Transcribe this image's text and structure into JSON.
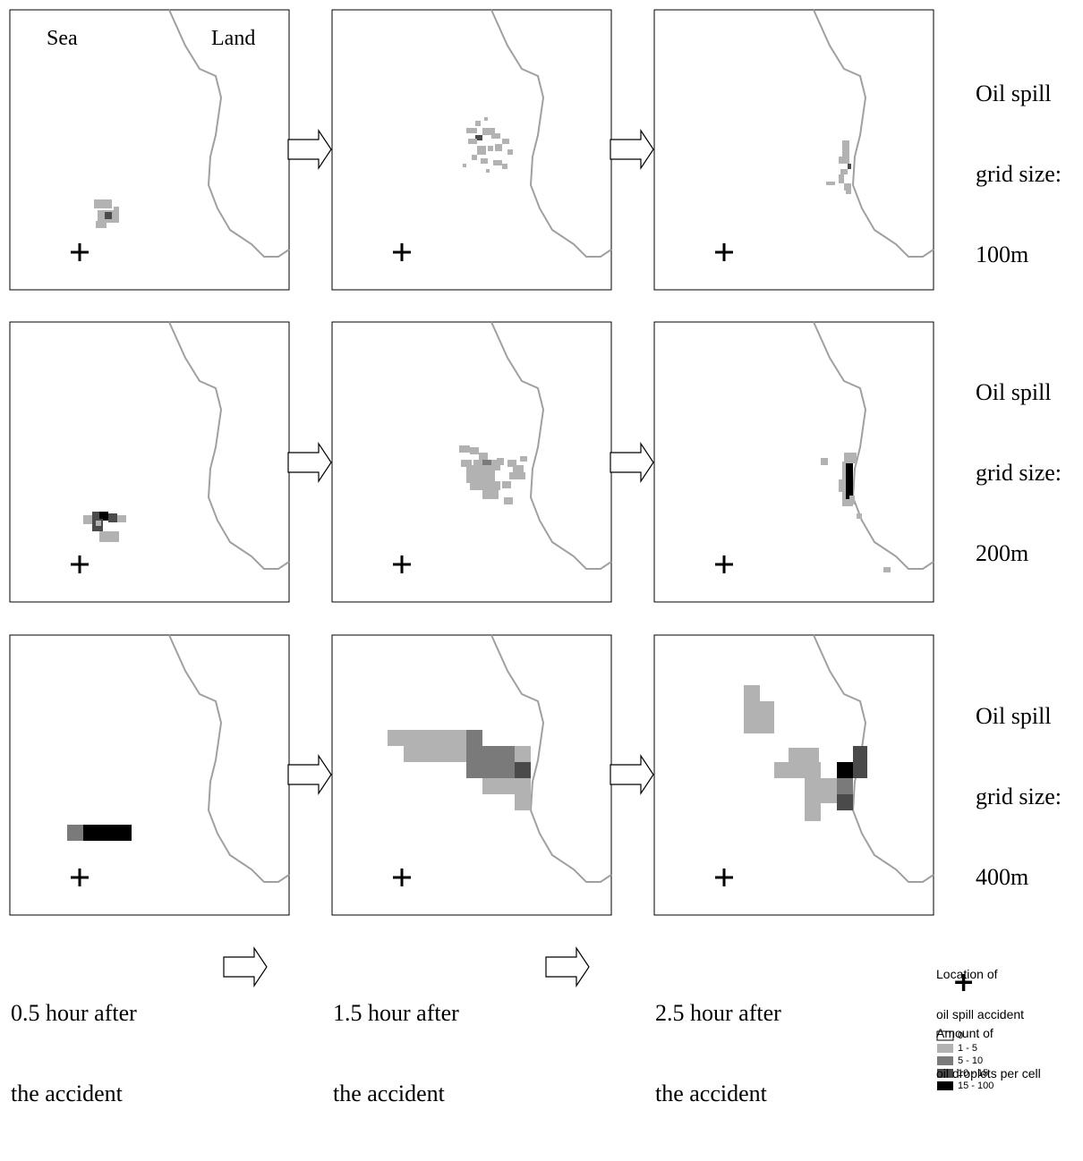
{
  "map_labels": {
    "sea": "Sea",
    "land": "Land"
  },
  "rows": [
    {
      "label_lines": [
        "Oil spill",
        "grid size:",
        "100m"
      ]
    },
    {
      "label_lines": [
        "Oil spill",
        "grid size:",
        "200m"
      ]
    },
    {
      "label_lines": [
        "Oil spill",
        "grid size:",
        "400m"
      ]
    }
  ],
  "columns": [
    {
      "time_lines": [
        "0.5 hour after",
        "the accident"
      ]
    },
    {
      "time_lines": [
        "1.5 hour after",
        "the accident"
      ]
    },
    {
      "time_lines": [
        "2.5 hour after",
        "the accident"
      ]
    }
  ],
  "legend": {
    "location_title": [
      "Location of",
      "oil spill accident"
    ],
    "location_symbol": "+",
    "amount_title": [
      "Amount of",
      "oil droplets per cell"
    ],
    "classes": [
      {
        "label": "0",
        "color": "#ffffff"
      },
      {
        "label": "1 - 5",
        "color": "#b2b2b2"
      },
      {
        "label": "5 - 10",
        "color": "#7a7a7a"
      },
      {
        "label": "10 - 15",
        "color": "#4a4a4a"
      },
      {
        "label": "15 - 100",
        "color": "#000000"
      }
    ]
  },
  "colors": {
    "coastline": "#a0a0a0",
    "frame": "#000000"
  }
}
